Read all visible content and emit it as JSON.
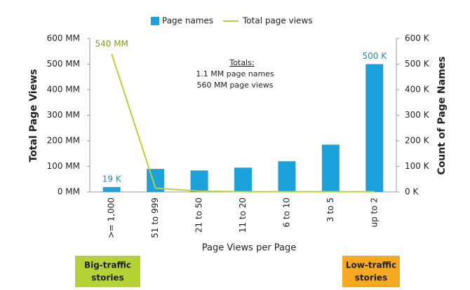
{
  "chart_data": {
    "type": "bar-line",
    "x_label": "Page Views per Page",
    "y_label": "Total Page Views",
    "y2_label": "Count of Page Names",
    "categories": [
      ">= 1,000",
      "51 to 999",
      "21 to 50",
      "11 to 20",
      "6 to 10",
      "3 to 5",
      "up to 2"
    ],
    "series": [
      {
        "name": "Page names",
        "type": "bar",
        "axis": "y2",
        "color": "#1ba1dc",
        "values": [
          19,
          90,
          84,
          95,
          120,
          185,
          500
        ],
        "value_labels": [
          "19 K",
          null,
          null,
          null,
          null,
          null,
          "500 K"
        ]
      },
      {
        "name": "Total page views",
        "type": "line",
        "color": "#b5d335",
        "values": [
          540,
          15,
          3,
          1,
          1,
          1,
          1
        ],
        "value_labels": [
          "540 MM",
          null,
          null,
          null,
          null,
          null,
          null
        ]
      }
    ],
    "ylim": [
      0,
      600
    ],
    "yticks": [
      {
        "value": 0,
        "label": "0 MM"
      },
      {
        "value": 100,
        "label": "100 MM"
      },
      {
        "value": 200,
        "label": "200 MM"
      },
      {
        "value": 300,
        "label": "300 MM"
      },
      {
        "value": 400,
        "label": "400 MM"
      },
      {
        "value": 500,
        "label": "500 MM"
      },
      {
        "value": 600,
        "label": "600 MM"
      }
    ],
    "y2lim": [
      0,
      600
    ],
    "y2ticks": [
      {
        "value": 0,
        "label": "0 K"
      },
      {
        "value": 100,
        "label": "100 K"
      },
      {
        "value": 200,
        "label": "200 K"
      },
      {
        "value": 300,
        "label": "300 K"
      },
      {
        "value": 400,
        "label": "400 K"
      },
      {
        "value": 500,
        "label": "500 K"
      },
      {
        "value": 600,
        "label": "600 K"
      }
    ],
    "annotations": [
      "Totals:",
      "1.1 MM page names",
      "560 MM page views"
    ],
    "callouts": [
      {
        "lines": [
          "Big-traffic",
          "stories"
        ],
        "color": "#b5d335"
      },
      {
        "lines": [
          "Low-traffic",
          "stories"
        ],
        "color": "#f5a820"
      }
    ]
  }
}
